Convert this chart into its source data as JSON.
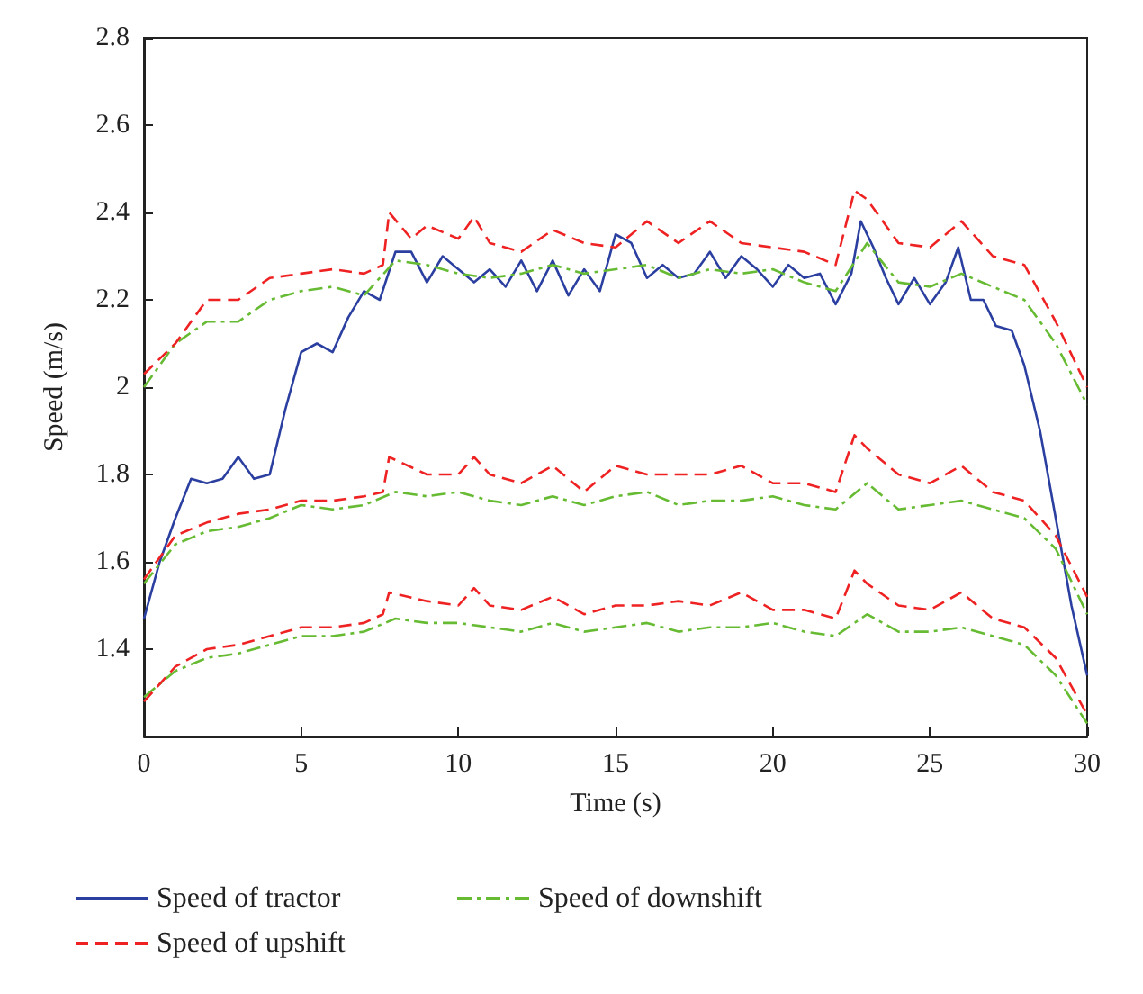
{
  "chart_data": {
    "type": "line",
    "xlabel": "Time (s)",
    "ylabel": "Speed (m/s)",
    "xlim": [
      0,
      30
    ],
    "xticks": [
      0,
      5,
      10,
      15,
      20,
      25,
      30
    ],
    "ylim": [
      1.2,
      2.8
    ],
    "yticks": [
      1.4,
      1.6,
      1.8,
      2,
      2.2,
      2.4,
      2.6,
      2.8
    ],
    "grid": false,
    "legend": "bottom",
    "marker": "none",
    "series": [
      {
        "name": "Speed of tractor",
        "color": "#2b3fa0",
        "line_style": "solid",
        "x": [
          0,
          0.5,
          1,
          1.5,
          2,
          2.5,
          3,
          3.5,
          4,
          4.5,
          5,
          5.5,
          6,
          6.5,
          7,
          7.5,
          8,
          8.5,
          9,
          9.5,
          10,
          10.5,
          11,
          11.5,
          12,
          12.5,
          13,
          13.5,
          14,
          14.5,
          15,
          15.5,
          16,
          16.5,
          17,
          17.5,
          18,
          18.5,
          19,
          19.5,
          20,
          20.5,
          21,
          21.5,
          22,
          22.5,
          22.8,
          23.2,
          23.6,
          24,
          24.5,
          25,
          25.5,
          25.9,
          26.3,
          26.7,
          27.1,
          27.6,
          28,
          28.5,
          29,
          29.5,
          30
        ],
        "values": [
          1.47,
          1.6,
          1.7,
          1.79,
          1.78,
          1.79,
          1.84,
          1.79,
          1.8,
          1.95,
          2.08,
          2.1,
          2.08,
          2.16,
          2.22,
          2.2,
          2.31,
          2.31,
          2.24,
          2.3,
          2.27,
          2.24,
          2.27,
          2.23,
          2.29,
          2.22,
          2.29,
          2.21,
          2.27,
          2.22,
          2.35,
          2.33,
          2.25,
          2.28,
          2.25,
          2.26,
          2.31,
          2.25,
          2.3,
          2.27,
          2.23,
          2.28,
          2.25,
          2.26,
          2.19,
          2.26,
          2.38,
          2.32,
          2.25,
          2.19,
          2.25,
          2.19,
          2.24,
          2.32,
          2.2,
          2.2,
          2.14,
          2.13,
          2.05,
          1.9,
          1.7,
          1.5,
          1.34
        ]
      },
      {
        "name": "Speed of downshift",
        "color": "#66bb33",
        "line_style": "dashdot",
        "x": [
          0,
          1,
          2,
          3,
          4,
          5,
          6,
          7,
          8,
          9,
          10,
          11,
          12,
          13,
          14,
          15,
          16,
          17,
          18,
          19,
          20,
          21,
          22,
          23,
          24,
          25,
          26,
          27,
          28,
          29,
          30
        ],
        "values": [
          2.0,
          2.1,
          2.15,
          2.15,
          2.2,
          2.22,
          2.23,
          2.21,
          2.29,
          2.28,
          2.26,
          2.25,
          2.26,
          2.28,
          2.26,
          2.27,
          2.28,
          2.25,
          2.27,
          2.26,
          2.27,
          2.24,
          2.22,
          2.33,
          2.24,
          2.23,
          2.26,
          2.23,
          2.2,
          2.1,
          1.96
        ]
      },
      {
        "color": "#66bb33",
        "line_style": "dashdot",
        "x": [
          0,
          1,
          2,
          3,
          4,
          5,
          6,
          7,
          8,
          9,
          10,
          11,
          12,
          13,
          14,
          15,
          16,
          17,
          18,
          19,
          20,
          21,
          22,
          23,
          24,
          25,
          26,
          27,
          28,
          29,
          30
        ],
        "values": [
          1.55,
          1.64,
          1.67,
          1.68,
          1.7,
          1.73,
          1.72,
          1.73,
          1.76,
          1.75,
          1.76,
          1.74,
          1.73,
          1.75,
          1.73,
          1.75,
          1.76,
          1.73,
          1.74,
          1.74,
          1.75,
          1.73,
          1.72,
          1.78,
          1.72,
          1.73,
          1.74,
          1.72,
          1.7,
          1.63,
          1.48
        ]
      },
      {
        "color": "#66bb33",
        "line_style": "dashdot",
        "x": [
          0,
          1,
          2,
          3,
          4,
          5,
          6,
          7,
          8,
          9,
          10,
          11,
          12,
          13,
          14,
          15,
          16,
          17,
          18,
          19,
          20,
          21,
          22,
          23,
          24,
          25,
          26,
          27,
          28,
          29,
          30
        ],
        "values": [
          1.29,
          1.35,
          1.38,
          1.39,
          1.41,
          1.43,
          1.43,
          1.44,
          1.47,
          1.46,
          1.46,
          1.45,
          1.44,
          1.46,
          1.44,
          1.45,
          1.46,
          1.44,
          1.45,
          1.45,
          1.46,
          1.44,
          1.43,
          1.48,
          1.44,
          1.44,
          1.45,
          1.43,
          1.41,
          1.34,
          1.23
        ]
      },
      {
        "name": "Speed of upshift",
        "color": "#ee2222",
        "line_style": "dashed",
        "x": [
          0,
          1,
          2,
          3,
          4,
          5,
          6,
          7,
          7.6,
          7.8,
          8.5,
          9,
          10,
          10.5,
          11,
          12,
          13,
          14,
          15,
          16,
          17,
          18,
          19,
          20,
          21,
          22,
          22.6,
          23,
          24,
          25,
          26,
          27,
          28,
          29,
          30
        ],
        "values": [
          2.03,
          2.1,
          2.2,
          2.2,
          2.25,
          2.26,
          2.27,
          2.26,
          2.28,
          2.4,
          2.34,
          2.37,
          2.34,
          2.39,
          2.33,
          2.31,
          2.36,
          2.33,
          2.32,
          2.38,
          2.33,
          2.38,
          2.33,
          2.32,
          2.31,
          2.28,
          2.45,
          2.43,
          2.33,
          2.32,
          2.38,
          2.3,
          2.28,
          2.15,
          2.0
        ]
      },
      {
        "color": "#ee2222",
        "line_style": "dashed",
        "x": [
          0,
          1,
          2,
          3,
          4,
          5,
          6,
          7,
          7.6,
          7.8,
          9,
          10,
          10.5,
          11,
          12,
          13,
          14,
          15,
          16,
          17,
          18,
          19,
          20,
          21,
          22,
          22.6,
          23,
          24,
          25,
          26,
          27,
          28,
          29,
          30
        ],
        "values": [
          1.56,
          1.66,
          1.69,
          1.71,
          1.72,
          1.74,
          1.74,
          1.75,
          1.76,
          1.84,
          1.8,
          1.8,
          1.84,
          1.8,
          1.78,
          1.82,
          1.76,
          1.82,
          1.8,
          1.8,
          1.8,
          1.82,
          1.78,
          1.78,
          1.76,
          1.89,
          1.86,
          1.8,
          1.78,
          1.82,
          1.76,
          1.74,
          1.66,
          1.52
        ]
      },
      {
        "color": "#ee2222",
        "line_style": "dashed",
        "x": [
          0,
          1,
          2,
          3,
          4,
          5,
          6,
          7,
          7.6,
          7.8,
          9,
          10,
          10.5,
          11,
          12,
          13,
          14,
          15,
          16,
          17,
          18,
          19,
          20,
          21,
          22,
          22.6,
          23,
          24,
          25,
          26,
          27,
          28,
          29,
          30
        ],
        "values": [
          1.28,
          1.36,
          1.4,
          1.41,
          1.43,
          1.45,
          1.45,
          1.46,
          1.48,
          1.53,
          1.51,
          1.5,
          1.54,
          1.5,
          1.49,
          1.52,
          1.48,
          1.5,
          1.5,
          1.51,
          1.5,
          1.53,
          1.49,
          1.49,
          1.47,
          1.58,
          1.55,
          1.5,
          1.49,
          1.53,
          1.47,
          1.45,
          1.38,
          1.25
        ]
      }
    ]
  }
}
